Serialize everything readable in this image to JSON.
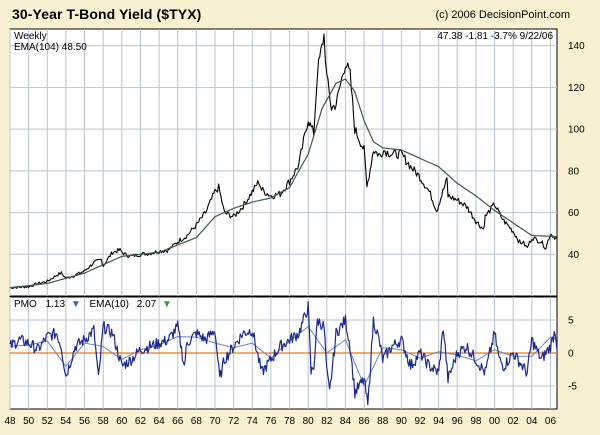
{
  "header": {
    "title": "30-Year T-Bond Yield ($TYX)",
    "copyright": "(c) 2006 DecisionPoint.com"
  },
  "upper_panel": {
    "period_label": "Weekly",
    "ema_label": "EMA(104) 48.50",
    "quote": "47.38  -1.81  -3.7%  9/22/06"
  },
  "lower_panel": {
    "pmo_name": "PMO",
    "pmo_value": "1.13",
    "pmo_arrow": "▼",
    "ema_name": "EMA(10)",
    "ema_value": "2.07",
    "ema_arrow": "▼"
  },
  "colors": {
    "background": "#F7F1D2",
    "plot_bg": "#FFFFFF",
    "grid": "#B9C2CF",
    "price": "#000000",
    "ema": "#3E5A45",
    "pmo": "#1A2A8C",
    "zero_line": "#E07A20",
    "arrow_down_pmo": "#3B5BD0",
    "arrow_down_ema": "#2E9A3A"
  },
  "chart_data": [
    {
      "type": "line",
      "title": "30-Year T-Bond Yield ($TYX)",
      "xlabel": "",
      "ylabel": "",
      "x_range": [
        1948,
        2006.7
      ],
      "ylim": [
        20,
        148
      ],
      "y_ticks": [
        40,
        60,
        80,
        100,
        120,
        140
      ],
      "x_tick_labels": [
        "48",
        "50",
        "52",
        "54",
        "56",
        "58",
        "60",
        "62",
        "64",
        "66",
        "68",
        "70",
        "72",
        "74",
        "76",
        "78",
        "80",
        "82",
        "84",
        "86",
        "88",
        "90",
        "92",
        "94",
        "96",
        "98",
        "00",
        "02",
        "04",
        "06"
      ],
      "x_tick_years": [
        1948,
        1950,
        1952,
        1954,
        1956,
        1958,
        1960,
        1962,
        1964,
        1966,
        1968,
        1970,
        1972,
        1974,
        1976,
        1978,
        1980,
        1982,
        1984,
        1986,
        1988,
        1990,
        1992,
        1994,
        1996,
        1998,
        2000,
        2002,
        2004,
        2006
      ],
      "series": [
        {
          "name": "$TYX weekly",
          "x": [
            1948,
            1950,
            1951,
            1952,
            1953,
            1953.5,
            1954,
            1955,
            1956,
            1957,
            1957.8,
            1958,
            1959,
            1959.8,
            1960.3,
            1961,
            1962,
            1963,
            1964,
            1965,
            1966,
            1967,
            1968,
            1969,
            1970,
            1970.4,
            1971,
            1972,
            1973,
            1974,
            1974.7,
            1975,
            1976,
            1977,
            1978,
            1979,
            1980,
            1980.2,
            1980.6,
            1981,
            1981.7,
            1982,
            1982.5,
            1983,
            1984,
            1984.5,
            1985,
            1986,
            1986.3,
            1987,
            1987.8,
            1988,
            1989,
            1990,
            1991,
            1992,
            1993,
            1993.8,
            1994,
            1994.9,
            1995,
            1996,
            1997,
            1998,
            1998.8,
            1999,
            2000,
            2000.7,
            2001,
            2002,
            2002.8,
            2003,
            2003.5,
            2004,
            2005,
            2005.5,
            2006,
            2006.7
          ],
          "values": [
            24,
            24.5,
            26,
            27,
            30,
            31,
            28.5,
            30,
            32,
            36,
            37.5,
            34.5,
            41,
            42,
            40,
            39,
            40,
            40.5,
            41.5,
            42,
            46,
            49,
            54,
            60,
            70,
            72,
            60,
            58,
            63,
            70,
            75,
            71,
            68,
            69,
            75,
            83,
            105,
            102,
            98,
            128,
            145,
            125,
            110,
            112,
            132,
            126,
            100,
            90,
            72,
            90,
            87,
            90,
            88,
            88,
            82,
            77,
            70,
            61,
            64,
            76,
            68,
            66,
            63,
            56,
            52,
            58,
            64,
            58,
            56,
            51,
            45,
            46,
            43,
            48,
            46,
            43,
            50,
            47.4
          ]
        },
        {
          "name": "EMA(104)",
          "x": [
            1948,
            1952,
            1956,
            1960,
            1964,
            1968,
            1970,
            1972,
            1974,
            1976,
            1978,
            1980,
            1981.5,
            1983,
            1984,
            1985,
            1986,
            1987,
            1988,
            1990,
            1992,
            1994,
            1996,
            1998,
            2000,
            2002,
            2004,
            2006.7
          ],
          "values": [
            24,
            26,
            31,
            39,
            41,
            48,
            58,
            62,
            65,
            67,
            72,
            88,
            110,
            122,
            124,
            118,
            104,
            94,
            91,
            90,
            86,
            82,
            74,
            68,
            61,
            55,
            49,
            48.5
          ]
        }
      ]
    },
    {
      "type": "line",
      "title": "PMO",
      "x_range": [
        1948,
        2006.7
      ],
      "ylim": [
        -8.5,
        8.5
      ],
      "y_ticks": [
        -5,
        0,
        5
      ],
      "series": [
        {
          "name": "PMO",
          "x": [
            1948,
            1949,
            1950,
            1951,
            1952,
            1953,
            1953.5,
            1954,
            1955,
            1956,
            1957,
            1957.5,
            1958,
            1959,
            1960,
            1961,
            1962,
            1963,
            1964,
            1965,
            1966,
            1966.7,
            1967,
            1968,
            1969,
            1970,
            1970.5,
            1971,
            1972,
            1973,
            1974,
            1975,
            1976,
            1977,
            1978,
            1979,
            1980,
            1980.3,
            1980.6,
            1981,
            1981.7,
            1982,
            1982.3,
            1983,
            1984,
            1984.5,
            1985,
            1986,
            1986.4,
            1987,
            1987.6,
            1988,
            1989,
            1990,
            1991,
            1992,
            1993,
            1994,
            1994.5,
            1995,
            1996,
            1997,
            1998,
            1999,
            2000,
            2000.5,
            2001,
            2002,
            2003,
            2003.5,
            2004,
            2005,
            2006,
            2006.5,
            2006.7
          ],
          "values": [
            1,
            2,
            1.5,
            0.5,
            2.5,
            3,
            1,
            -3.5,
            1,
            2,
            3.5,
            -4,
            4,
            3,
            -2,
            -1,
            0.5,
            1,
            1.5,
            2,
            4,
            -2,
            1.5,
            3,
            2,
            3.5,
            -4,
            -1,
            1,
            3,
            3.5,
            -3,
            -1,
            1,
            2,
            3,
            7,
            -3,
            -2,
            5,
            4,
            -3,
            -6,
            3,
            5,
            1,
            -6,
            -4,
            -8,
            5,
            2,
            -1,
            1,
            2,
            -2,
            0,
            -2,
            -3,
            4,
            -4,
            0,
            1,
            -1,
            -3,
            3,
            -1,
            -2,
            0,
            -2,
            -3,
            2,
            -1,
            1,
            3.5,
            1.1
          ]
        },
        {
          "name": "EMA(10)",
          "x": [
            1948,
            1950,
            1952,
            1954,
            1956,
            1958,
            1960,
            1962,
            1964,
            1966,
            1968,
            1970,
            1972,
            1974,
            1976,
            1978,
            1980,
            1982,
            1984,
            1986,
            1988,
            1990,
            1992,
            1994,
            1996,
            1998,
            2000,
            2002,
            2004,
            2006,
            2006.7
          ],
          "values": [
            1,
            1.2,
            1.8,
            -2,
            1.5,
            1,
            -1,
            0.5,
            1.2,
            2.5,
            2.4,
            1.5,
            0.8,
            1.5,
            -0.8,
            1.8,
            4,
            0,
            2,
            -5,
            0.8,
            0.5,
            -0.8,
            0.2,
            -0.3,
            -1.2,
            0.5,
            -0.5,
            -0.5,
            2.4,
            2.07
          ]
        }
      ]
    }
  ]
}
